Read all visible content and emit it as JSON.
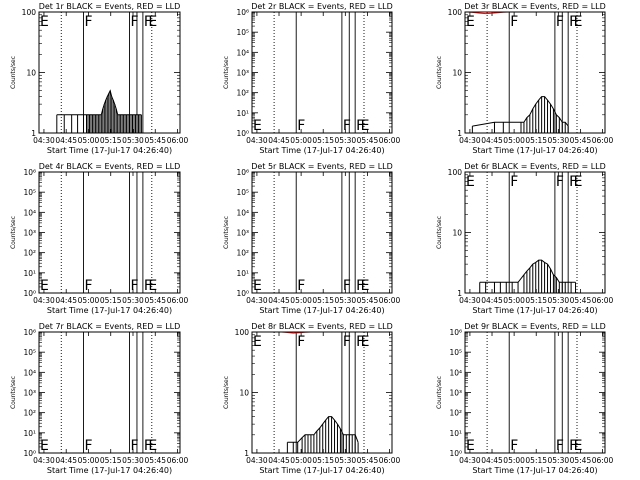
{
  "page": {
    "background": "#ffffff"
  },
  "colors": {
    "events": "#000000",
    "lld": "#ff0000"
  },
  "chart_data": [
    {
      "type": "line",
      "title": "Det 1r BLACK = Events, RED = LLD",
      "xlabel": "Start Time (17-Jul-17 04:26:40)",
      "ylabel": "Counts/sec",
      "yscale": "log",
      "ylim": [
        1,
        100
      ],
      "x_ticks": [
        "04:30",
        "04:45",
        "05:00",
        "05:15",
        "05:30",
        "05:45",
        "06:00"
      ],
      "y_ticks": [
        "1",
        "10",
        "100"
      ],
      "x_range_min": [
        0,
        95
      ],
      "dotted_lines": [
        15,
        76
      ],
      "solid_lines": [
        30,
        61,
        66,
        70
      ],
      "markers": [
        {
          "text": "E",
          "x": 0
        },
        {
          "text": "F",
          "x": 30
        },
        {
          "text": "F",
          "x": 61
        },
        {
          "text": "F",
          "x": 70
        },
        {
          "text": "E",
          "x": 73
        }
      ],
      "markers_y": "top",
      "series": [
        {
          "color": "#000000",
          "dense": true,
          "x": [
            12,
            17,
            22,
            26,
            30,
            32,
            33,
            34,
            35,
            36,
            37,
            38,
            39,
            40,
            41,
            42,
            43,
            44,
            45,
            46,
            47,
            48,
            49,
            50,
            51,
            52,
            53,
            54,
            55,
            56,
            57,
            58,
            59,
            60,
            61,
            62,
            63,
            64,
            65,
            66,
            67,
            68,
            69
          ],
          "y": [
            2,
            2,
            2,
            2,
            2,
            2,
            2,
            2,
            2,
            2,
            2,
            2,
            2,
            2,
            2,
            2,
            2.5,
            3,
            3.5,
            4,
            4.5,
            5,
            4,
            3.5,
            3,
            2.5,
            2,
            2,
            2,
            2,
            2,
            2,
            2,
            2,
            2,
            2,
            2,
            2,
            2,
            2,
            2,
            2,
            2
          ]
        }
      ]
    },
    {
      "type": "line",
      "title": "Det 2r BLACK = Events, RED = LLD",
      "xlabel": "Start Time (17-Jul-17 04:26:40)",
      "ylabel": "Counts/sec",
      "yscale": "log",
      "ylim": [
        1,
        1000000
      ],
      "x_ticks": [
        "04:30",
        "04:45",
        "05:00",
        "05:15",
        "05:30",
        "05:45",
        "06:00"
      ],
      "y_ticks": [
        "10⁰",
        "10¹",
        "10²",
        "10³",
        "10⁴",
        "10⁵",
        "10⁶"
      ],
      "x_range_min": [
        0,
        95
      ],
      "dotted_lines": [
        15,
        76
      ],
      "solid_lines": [
        30,
        61,
        66,
        70
      ],
      "markers": [
        {
          "text": "E",
          "x": 0
        },
        {
          "text": "F",
          "x": 30
        },
        {
          "text": "F",
          "x": 61
        },
        {
          "text": "F",
          "x": 70
        },
        {
          "text": "E",
          "x": 73
        }
      ],
      "markers_y": "bottom",
      "series": []
    },
    {
      "type": "line",
      "title": "Det 3r BLACK = Events, RED = LLD",
      "xlabel": "Start Time (17-Jul-17 04:26:40)",
      "ylabel": "Counts/sec",
      "yscale": "log",
      "ylim": [
        1,
        100
      ],
      "x_ticks": [
        "04:30",
        "04:45",
        "05:00",
        "05:15",
        "05:30",
        "05:45",
        "06:00"
      ],
      "y_ticks": [
        "1",
        "10",
        "100"
      ],
      "x_range_min": [
        0,
        95
      ],
      "dotted_lines": [
        15,
        76
      ],
      "solid_lines": [
        30,
        61,
        66,
        70
      ],
      "markers": [
        {
          "text": "E",
          "x": 0
        },
        {
          "text": "F",
          "x": 30
        },
        {
          "text": "F",
          "x": 61
        },
        {
          "text": "F",
          "x": 70
        },
        {
          "text": "E",
          "x": 73
        }
      ],
      "markers_y": "top",
      "series": [
        {
          "color": "#000000",
          "dense": true,
          "x": [
            5,
            20,
            26,
            38,
            40,
            42,
            44,
            46,
            48,
            50,
            52,
            54,
            56,
            58,
            60,
            62,
            64,
            66,
            68,
            70
          ],
          "y": [
            1.3,
            1.5,
            1.5,
            1.5,
            1.5,
            1.8,
            2,
            2.5,
            3,
            3.5,
            4,
            4,
            3.5,
            3,
            2.5,
            2,
            1.8,
            1.5,
            1.5,
            1.3
          ]
        },
        {
          "color": "#ff0000",
          "dense": false,
          "x": [
            2,
            6,
            10,
            14,
            18,
            22,
            26,
            30,
            34,
            38,
            42,
            46,
            50,
            54,
            58,
            62,
            66,
            70,
            74
          ],
          "y": [
            100,
            98,
            96,
            94,
            95,
            97,
            99,
            100,
            100,
            100,
            100,
            100,
            100,
            100,
            100,
            100,
            100,
            100,
            100
          ]
        }
      ]
    },
    {
      "type": "line",
      "title": "Det 4r BLACK = Events, RED = LLD",
      "xlabel": "Start Time (17-Jul-17 04:26:40)",
      "ylabel": "Counts/sec",
      "yscale": "log",
      "ylim": [
        1,
        1000000
      ],
      "x_ticks": [
        "04:30",
        "04:45",
        "05:00",
        "05:15",
        "05:30",
        "05:45",
        "06:00"
      ],
      "y_ticks": [
        "10⁰",
        "10¹",
        "10²",
        "10³",
        "10⁴",
        "10⁵",
        "10⁶"
      ],
      "x_range_min": [
        0,
        95
      ],
      "dotted_lines": [
        15,
        76
      ],
      "solid_lines": [
        30,
        61,
        66,
        70
      ],
      "markers": [
        {
          "text": "E",
          "x": 0
        },
        {
          "text": "F",
          "x": 30
        },
        {
          "text": "F",
          "x": 61
        },
        {
          "text": "F",
          "x": 70
        },
        {
          "text": "E",
          "x": 73
        }
      ],
      "markers_y": "bottom",
      "series": []
    },
    {
      "type": "line",
      "title": "Det 5r BLACK = Events, RED = LLD",
      "xlabel": "Start Time (17-Jul-17 04:26:40)",
      "ylabel": "Counts/sec",
      "yscale": "log",
      "ylim": [
        1,
        1000000
      ],
      "x_ticks": [
        "04:30",
        "04:45",
        "05:00",
        "05:15",
        "05:30",
        "05:45",
        "06:00"
      ],
      "y_ticks": [
        "10⁰",
        "10¹",
        "10²",
        "10³",
        "10⁴",
        "10⁵",
        "10⁶"
      ],
      "x_range_min": [
        0,
        95
      ],
      "dotted_lines": [
        15,
        76
      ],
      "solid_lines": [
        30,
        61,
        66,
        70
      ],
      "markers": [
        {
          "text": "E",
          "x": 0
        },
        {
          "text": "F",
          "x": 30
        },
        {
          "text": "F",
          "x": 61
        },
        {
          "text": "F",
          "x": 70
        },
        {
          "text": "E",
          "x": 73
        }
      ],
      "markers_y": "bottom",
      "series": []
    },
    {
      "type": "line",
      "title": "Det 6r BLACK = Events, RED = LLD",
      "xlabel": "Start Time (17-Jul-17 04:26:40)",
      "ylabel": "Counts/sec",
      "yscale": "log",
      "ylim": [
        1,
        100
      ],
      "x_ticks": [
        "04:30",
        "04:45",
        "05:00",
        "05:15",
        "05:30",
        "05:45",
        "06:00"
      ],
      "y_ticks": [
        "1",
        "10",
        "100"
      ],
      "x_range_min": [
        0,
        95
      ],
      "dotted_lines": [
        15,
        76
      ],
      "solid_lines": [
        30,
        61,
        66,
        70
      ],
      "markers": [
        {
          "text": "E",
          "x": 0
        },
        {
          "text": "F",
          "x": 30
        },
        {
          "text": "F",
          "x": 61
        },
        {
          "text": "F",
          "x": 70
        },
        {
          "text": "E",
          "x": 73
        }
      ],
      "markers_y": "top",
      "series": [
        {
          "color": "#000000",
          "dense": true,
          "x": [
            10,
            14,
            20,
            24,
            28,
            32,
            36,
            40,
            42,
            44,
            46,
            48,
            50,
            52,
            54,
            56,
            58,
            60,
            62,
            64,
            66,
            68,
            72,
            75
          ],
          "y": [
            1.5,
            1.5,
            1.5,
            1.5,
            1.5,
            1.5,
            1.5,
            2,
            2.3,
            2.6,
            3,
            3.2,
            3.5,
            3.5,
            3.2,
            3,
            2.5,
            2,
            1.8,
            1.5,
            1.5,
            1.5,
            1.5,
            1.5
          ]
        }
      ]
    },
    {
      "type": "line",
      "title": "Det 7r BLACK = Events, RED = LLD",
      "xlabel": "Start Time (17-Jul-17 04:26:40)",
      "ylabel": "Counts/sec",
      "yscale": "log",
      "ylim": [
        1,
        1000000
      ],
      "x_ticks": [
        "04:30",
        "04:45",
        "05:00",
        "05:15",
        "05:30",
        "05:45",
        "06:00"
      ],
      "y_ticks": [
        "10⁰",
        "10¹",
        "10²",
        "10³",
        "10⁴",
        "10⁵",
        "10⁶"
      ],
      "x_range_min": [
        0,
        95
      ],
      "dotted_lines": [
        15,
        76
      ],
      "solid_lines": [
        30,
        61,
        66,
        70
      ],
      "markers": [
        {
          "text": "E",
          "x": 0
        },
        {
          "text": "F",
          "x": 30
        },
        {
          "text": "F",
          "x": 61
        },
        {
          "text": "F",
          "x": 70
        },
        {
          "text": "E",
          "x": 73
        }
      ],
      "markers_y": "bottom",
      "series": []
    },
    {
      "type": "line",
      "title": "Det 8r BLACK = Events, RED = LLD",
      "xlabel": "Start Time (17-Jul-17 04:26:40)",
      "ylabel": "Counts/sec",
      "yscale": "log",
      "ylim": [
        1,
        100
      ],
      "x_ticks": [
        "04:30",
        "04:45",
        "05:00",
        "05:15",
        "05:30",
        "05:45",
        "06:00"
      ],
      "y_ticks": [
        "1",
        "10",
        "100"
      ],
      "x_range_min": [
        0,
        95
      ],
      "dotted_lines": [
        15,
        76
      ],
      "solid_lines": [
        30,
        61,
        66,
        70
      ],
      "markers": [
        {
          "text": "E",
          "x": 0
        },
        {
          "text": "F",
          "x": 30
        },
        {
          "text": "F",
          "x": 61
        },
        {
          "text": "F",
          "x": 70
        },
        {
          "text": "E",
          "x": 73
        }
      ],
      "markers_y": "top",
      "series": [
        {
          "color": "#000000",
          "dense": true,
          "x": [
            24,
            28,
            31,
            34,
            36,
            38,
            40,
            42,
            44,
            46,
            48,
            50,
            52,
            54,
            56,
            58,
            60,
            62,
            64,
            66,
            68,
            70,
            72
          ],
          "y": [
            1.5,
            1.5,
            1.5,
            1.8,
            2,
            2,
            2,
            2,
            2.3,
            2.6,
            3,
            3.5,
            4,
            4,
            3.5,
            3,
            2.5,
            2,
            2,
            2,
            2,
            2,
            1.5
          ]
        },
        {
          "color": "#ff0000",
          "dense": false,
          "x": [
            20,
            24,
            28,
            32,
            36,
            40
          ],
          "y": [
            100,
            98,
            96,
            97,
            99,
            100
          ]
        }
      ]
    },
    {
      "type": "line",
      "title": "Det 9r BLACK = Events, RED = LLD",
      "xlabel": "Start Time (17-Jul-17 04:26:40)",
      "ylabel": "Counts/sec",
      "yscale": "log",
      "ylim": [
        1,
        1000000
      ],
      "x_ticks": [
        "04:30",
        "04:45",
        "05:00",
        "05:15",
        "05:30",
        "05:45",
        "06:00"
      ],
      "y_ticks": [
        "10⁰",
        "10¹",
        "10²",
        "10³",
        "10⁴",
        "10⁵",
        "10⁶"
      ],
      "x_range_min": [
        0,
        95
      ],
      "dotted_lines": [
        15,
        76
      ],
      "solid_lines": [
        30,
        61,
        66,
        70
      ],
      "markers": [
        {
          "text": "E",
          "x": 0
        },
        {
          "text": "F",
          "x": 30
        },
        {
          "text": "F",
          "x": 61
        },
        {
          "text": "F",
          "x": 70
        },
        {
          "text": "E",
          "x": 73
        }
      ],
      "markers_y": "bottom",
      "series": []
    }
  ]
}
